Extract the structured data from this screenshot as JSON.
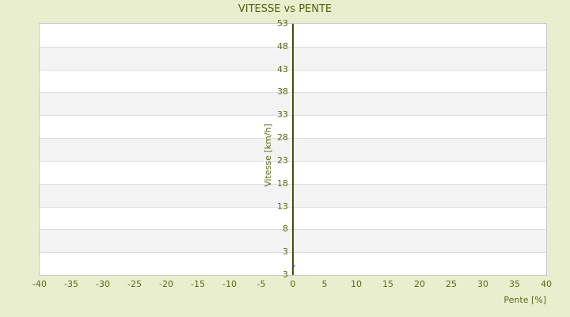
{
  "colors": {
    "background": "#e9eecf",
    "band_white": "#ffffff",
    "band_gray": "#f3f3f3",
    "gridline": "#dcdcdc",
    "plot_border": "#c9c9c9",
    "axis_line": "#41500a",
    "title_text": "#556108",
    "tick_text": "#5e6813",
    "point": "#3a617a"
  },
  "chart_data": {
    "type": "scatter",
    "title": "VITESSE vs PENTE",
    "xlabel": "Pente [%]",
    "ylabel": "Vitesse [km/h]",
    "xlim": [
      -40,
      40
    ],
    "ylim": [
      -2,
      53
    ],
    "x_ticks": [
      -40,
      -35,
      -30,
      -25,
      -20,
      -15,
      -10,
      -5,
      0,
      5,
      10,
      15,
      20,
      25,
      30,
      35,
      40
    ],
    "y_tick_labels": [
      "53",
      "48",
      "43",
      "38",
      "33",
      "28",
      "23",
      "18",
      "13",
      "8",
      "3",
      "3"
    ],
    "grid": "alternating horizontal bands with gridlines at each y tick",
    "legend": "none",
    "series": [
      {
        "name": "Vitesse",
        "points": [
          {
            "x": 0,
            "y": 0
          }
        ]
      }
    ]
  }
}
